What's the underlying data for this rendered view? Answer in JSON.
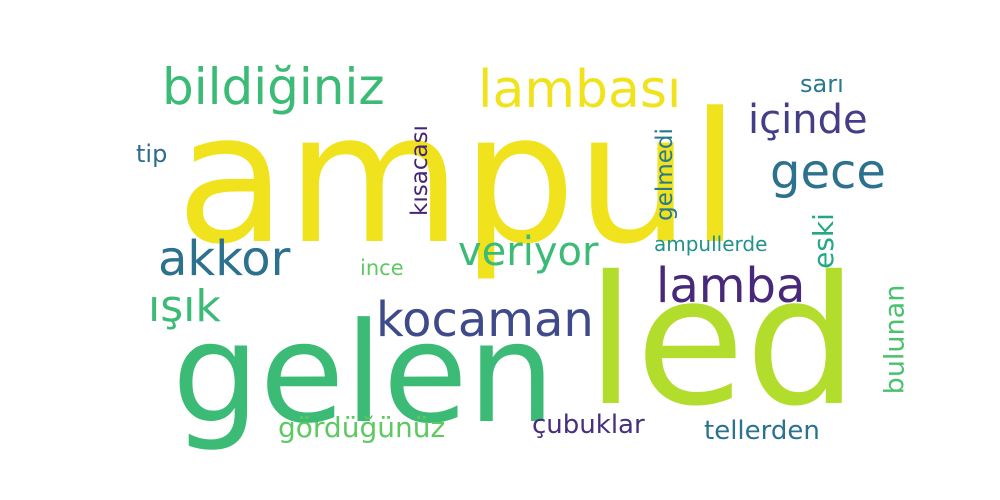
{
  "words": [
    {
      "id": "ampul",
      "text": "ampul",
      "color": "#f0e31e"
    },
    {
      "id": "led",
      "text": "led",
      "color": "#b2dd2c"
    },
    {
      "id": "gelen",
      "text": "gelen",
      "color": "#3bbb75"
    },
    {
      "id": "bildiginiz",
      "text": "bildiğiniz",
      "color": "#3bbb75"
    },
    {
      "id": "lambasi",
      "text": "lambası",
      "color": "#f0e31e"
    },
    {
      "id": "icinde",
      "text": "içinde",
      "color": "#433e85"
    },
    {
      "id": "gece",
      "text": "gece",
      "color": "#2c728e"
    },
    {
      "id": "akkor",
      "text": "akkor",
      "color": "#2c728e"
    },
    {
      "id": "veriyor",
      "text": "veriyor",
      "color": "#3bbb75"
    },
    {
      "id": "lamba",
      "text": "lamba",
      "color": "#482878"
    },
    {
      "id": "isik",
      "text": "ışık",
      "color": "#3bbb75"
    },
    {
      "id": "kocaman",
      "text": "kocaman",
      "color": "#3e4a89"
    },
    {
      "id": "sari",
      "text": "sarı",
      "color": "#2a788e"
    },
    {
      "id": "tip",
      "text": "tip",
      "color": "#2f6c8e"
    },
    {
      "id": "kisacasi",
      "text": "kısacası",
      "color": "#482475"
    },
    {
      "id": "gelmedi",
      "text": "gelmedi",
      "color": "#2a788e"
    },
    {
      "id": "eski",
      "text": "eski",
      "color": "#22a884"
    },
    {
      "id": "ampullerde",
      "text": "ampullerde",
      "color": "#21918c"
    },
    {
      "id": "ince",
      "text": "ince",
      "color": "#5ec962"
    },
    {
      "id": "bulunan",
      "text": "bulunan",
      "color": "#4ac16d"
    },
    {
      "id": "gorduguunuz",
      "text": "gördüğünüz",
      "color": "#5ec962"
    },
    {
      "id": "cubuklar",
      "text": "çubuklar",
      "color": "#472f7d"
    },
    {
      "id": "tellerden",
      "text": "tellerden",
      "color": "#2c728e"
    }
  ]
}
